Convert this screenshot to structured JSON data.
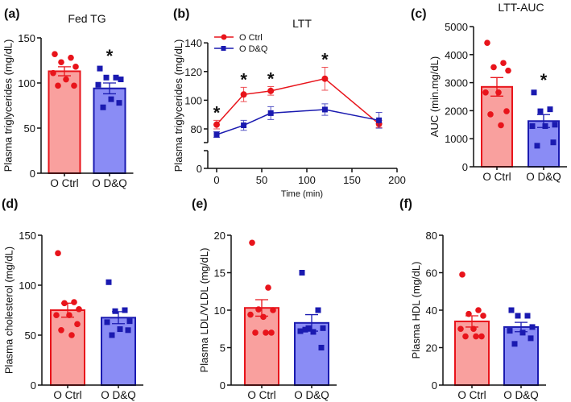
{
  "colors": {
    "ctrl": "#e8141b",
    "ctrl_fill": "#f9a09e",
    "dq": "#1a1ab0",
    "dq_fill": "#8a8cf5"
  },
  "chart_data": [
    {
      "panel_label": "(a)",
      "type": "bar",
      "title": "Fed TG",
      "ylabel": "Plasma triglycerides (mg/dL)",
      "ylim": [
        0,
        150
      ],
      "yticks": [
        "0",
        "50",
        "100",
        "150"
      ],
      "categories": [
        "O Ctrl",
        "O D&Q"
      ],
      "values": [
        113,
        94
      ],
      "sem": [
        5,
        6
      ],
      "points": [
        [
          132,
          128,
          123,
          118,
          111,
          104,
          97,
          97
        ],
        [
          116,
          106,
          106,
          104,
          98,
          82,
          78,
          73
        ]
      ],
      "significance": [
        "",
        "*"
      ]
    },
    {
      "panel_label": "(b)",
      "type": "line",
      "title": "LTT",
      "xlabel": "Time (min)",
      "ylabel": "Plasma triglycerides (mg/dL)",
      "xlim": [
        0,
        200
      ],
      "xticks": [
        "0",
        "50",
        "100",
        "150",
        "200"
      ],
      "ylim": [
        0,
        140
      ],
      "yticks": [
        "0",
        "80",
        "100",
        "120",
        "140"
      ],
      "axis_break": true,
      "legend": "top-left",
      "x": [
        0,
        30,
        60,
        120,
        180
      ],
      "series": [
        {
          "name": "O Ctrl",
          "values": [
            83,
            104,
            106.5,
            115,
            83.5
          ],
          "sem": [
            3,
            5,
            3,
            8,
            2.5
          ]
        },
        {
          "name": "O D&Q",
          "values": [
            76,
            82.5,
            91,
            93.5,
            86
          ],
          "sem": [
            2,
            3.5,
            4.5,
            4,
            5.5
          ]
        }
      ],
      "significance": [
        "*",
        "*",
        "*",
        "*",
        ""
      ]
    },
    {
      "panel_label": "(c)",
      "type": "bar",
      "title": "LTT-AUC",
      "ylabel": "AUC (min.mg/dL)",
      "ylim": [
        0,
        5000
      ],
      "yticks": [
        "0",
        "1000",
        "2000",
        "3000",
        "4000",
        "5000"
      ],
      "categories": [
        "O Ctrl",
        "O D&Q"
      ],
      "values": [
        2850,
        1630
      ],
      "sem": [
        330,
        230
      ],
      "points": [
        [
          4420,
          3700,
          3550,
          3430,
          2650,
          2650,
          1980,
          1870,
          1480
        ],
        [
          2650,
          2050,
          1980,
          1500,
          1450,
          1450,
          870,
          750
        ]
      ],
      "significance": [
        "",
        "*"
      ]
    },
    {
      "panel_label": "(d)",
      "type": "bar",
      "title": "",
      "ylabel": "Plasma cholesterol (mg/dL)",
      "ylim": [
        0,
        150
      ],
      "yticks": [
        "0",
        "50",
        "100",
        "150"
      ],
      "categories": [
        "O Ctrl",
        "O D&Q"
      ],
      "values": [
        75,
        67.5
      ],
      "sem": [
        7,
        6
      ],
      "points": [
        [
          132,
          83,
          82,
          76,
          70,
          70,
          61,
          55,
          50
        ],
        [
          103,
          75,
          74,
          64,
          63,
          56,
          55,
          50
        ]
      ],
      "significance": [
        "",
        ""
      ]
    },
    {
      "panel_label": "(e)",
      "type": "bar",
      "title": "",
      "ylabel": "Plasma LDL/VLDL (mg/dL)",
      "ylim": [
        0,
        20
      ],
      "yticks": [
        "0",
        "5",
        "10",
        "15",
        "20"
      ],
      "categories": [
        "O Ctrl",
        "O D&Q"
      ],
      "values": [
        10.3,
        8.3
      ],
      "sem": [
        1.1,
        1.1
      ],
      "points": [
        [
          19,
          13,
          10.1,
          10,
          9.4,
          9.1,
          7,
          7,
          7
        ],
        [
          15,
          10,
          7.6,
          7.6,
          7.2,
          7.1,
          5,
          7.4
        ]
      ],
      "significance": [
        "",
        ""
      ]
    },
    {
      "panel_label": "(f)",
      "type": "bar",
      "title": "",
      "ylabel": "Plasma HDL (mg/dL)",
      "ylim": [
        0,
        80
      ],
      "yticks": [
        "0",
        "20",
        "40",
        "60",
        "80"
      ],
      "categories": [
        "O Ctrl",
        "O D&Q"
      ],
      "values": [
        34,
        31
      ],
      "sem": [
        3,
        2.5
      ],
      "points": [
        [
          59,
          40,
          38,
          37,
          30,
          30,
          26,
          26,
          26
        ],
        [
          40,
          37,
          37,
          31,
          29,
          28,
          25,
          22
        ]
      ],
      "significance": [
        "",
        ""
      ]
    }
  ]
}
